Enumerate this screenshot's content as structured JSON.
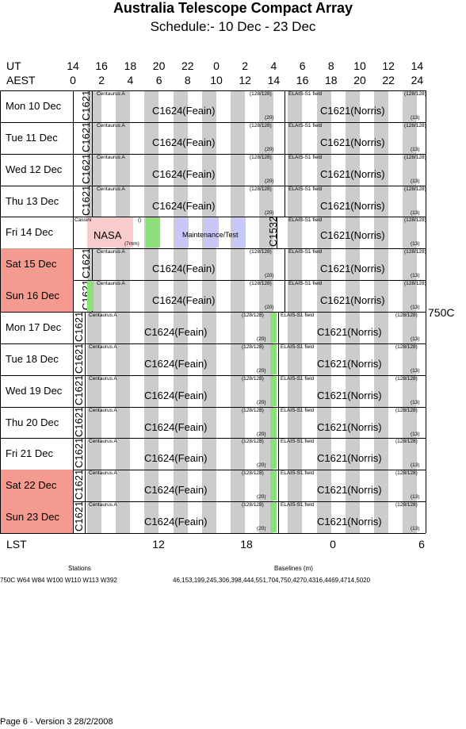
{
  "title": "Australia Telescope Compact Array",
  "subtitle": "Schedule:- 10 Dec - 23 Dec",
  "axes": {
    "ut_label": "UT",
    "aest_label": "AEST",
    "lst_label": "LST",
    "ut_ticks": [
      "14",
      "16",
      "18",
      "20",
      "22",
      "0",
      "2",
      "4",
      "6",
      "8",
      "10",
      "12",
      "14"
    ],
    "aest_ticks": [
      "0",
      "2",
      "4",
      "6",
      "8",
      "10",
      "12",
      "14",
      "16",
      "18",
      "20",
      "22",
      "24"
    ],
    "lst_ticks": [
      "12",
      "18",
      "0",
      "6"
    ]
  },
  "days": [
    {
      "label": "Mon  10 Dec",
      "weekend": false
    },
    {
      "label": "Tue   11 Dec",
      "weekend": false
    },
    {
      "label": "Wed  12 Dec",
      "weekend": false
    },
    {
      "label": "Thu   13 Dec",
      "weekend": false
    },
    {
      "label": "Fri    14 Dec",
      "weekend": false
    },
    {
      "label": "Sat   15 Dec",
      "weekend": true
    },
    {
      "label": "Sun   16 Dec",
      "weekend": true
    },
    {
      "label": "Mon  17 Dec",
      "weekend": false
    },
    {
      "label": "Tue   18 Dec",
      "weekend": false
    },
    {
      "label": "Wed  19 Dec",
      "weekend": false
    },
    {
      "label": "Thu   20 Dec",
      "weekend": false
    },
    {
      "label": "Fri    21 Dec",
      "weekend": false
    },
    {
      "label": "Sat   22 Dec",
      "weekend": true
    },
    {
      "label": "Sun   23 Dec",
      "weekend": true
    }
  ],
  "blocks": {
    "c1621": "C1621",
    "c1624": "C1624(Feain)",
    "c1621_norris": "C1621(Norris)",
    "centaurus": "Centaurus A",
    "elais": "ELAIS-S1 field",
    "ratio": "(128/128)",
    "n20": "(20)",
    "n13": "(13)",
    "nasa": "NASA",
    "cassini": "Cassini",
    "mm": "(7mm)",
    "paren": "()",
    "maint": "Maintenance/Test",
    "c1532": "C1532"
  },
  "colors": {
    "weekend": "#f59a8e",
    "green": "#8ee07a",
    "nasa_pink": "#f9cccc",
    "maint_blue": "#c8c8f8",
    "gray_stripe": "#cccccc"
  },
  "config": "750C",
  "stations": {
    "label": "Stations",
    "text": "750C   W64 W84 W100 W110 W113 W392"
  },
  "baselines": {
    "label": "Baselines (m)",
    "text": "46,153,199,245,306,398,444,551,704,750,4270,4316,4469,4714,5020"
  },
  "footer": "Page 6 - Version 3  28/2/2008"
}
